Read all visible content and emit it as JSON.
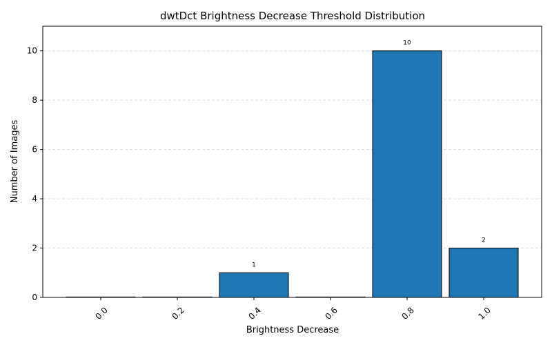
{
  "chart_data": {
    "type": "bar",
    "title": "dwtDct Brightness Decrease Threshold Distribution",
    "xlabel": "Brightness Decrease",
    "ylabel": "Number of Images",
    "categories": [
      "0.0",
      "0.2",
      "0.4",
      "0.6",
      "0.8",
      "1.0"
    ],
    "values": [
      0,
      0,
      1,
      0,
      10,
      2
    ],
    "data_labels": [
      "",
      "",
      "1",
      "",
      "10",
      "2"
    ],
    "ylim": [
      0,
      11
    ],
    "yticks": [
      "0",
      "2",
      "4",
      "6",
      "8",
      "10"
    ],
    "grid": true,
    "bar_color": "#1f77b4",
    "edge_color": "#000000"
  }
}
